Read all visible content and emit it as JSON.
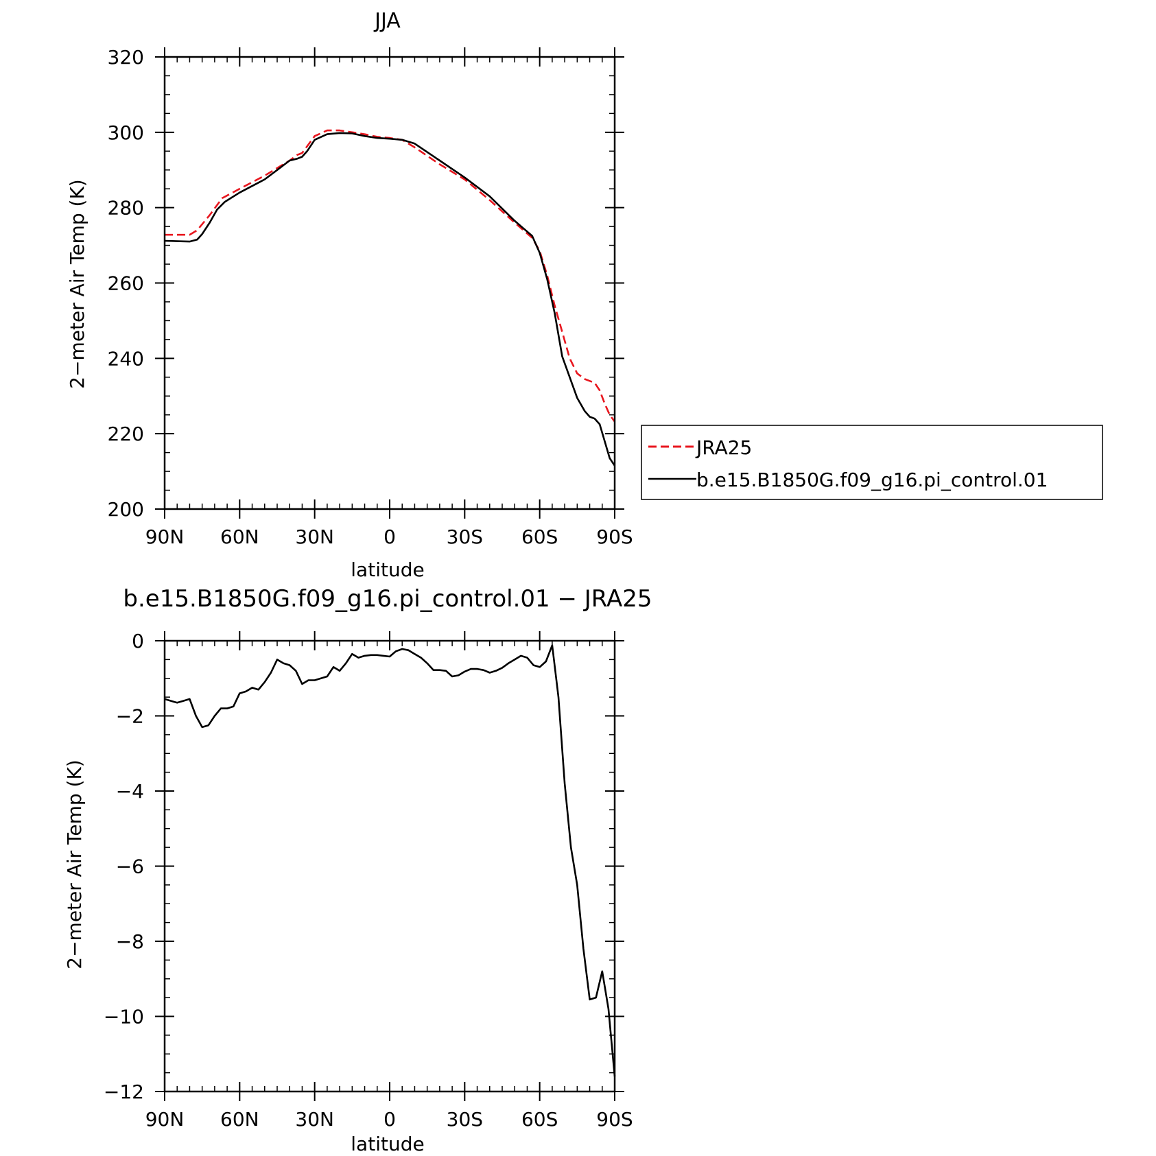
{
  "chart_data": [
    {
      "type": "line",
      "title": "JJA",
      "xlabel": "latitude",
      "ylabel": "2−meter Air Temp (K)",
      "xlim": [
        90,
        -90
      ],
      "ylim": [
        200,
        320
      ],
      "x_ticks": [
        {
          "value": 90,
          "label": "90N"
        },
        {
          "value": 60,
          "label": "60N"
        },
        {
          "value": 30,
          "label": "30N"
        },
        {
          "value": 0,
          "label": "0"
        },
        {
          "value": -30,
          "label": "30S"
        },
        {
          "value": -60,
          "label": "60S"
        },
        {
          "value": -90,
          "label": "90S"
        }
      ],
      "y_ticks": [
        {
          "value": 200,
          "label": "200"
        },
        {
          "value": 220,
          "label": "220"
        },
        {
          "value": 240,
          "label": "240"
        },
        {
          "value": 260,
          "label": "260"
        },
        {
          "value": 280,
          "label": "280"
        },
        {
          "value": 300,
          "label": "300"
        },
        {
          "value": 320,
          "label": "320"
        }
      ],
      "legend_position": "right",
      "series": [
        {
          "name": "JRA25",
          "color": "#e8171f",
          "dash": "dashed",
          "x": [
            90,
            80,
            77,
            72,
            67,
            60,
            50,
            45,
            40,
            37,
            35,
            30,
            25,
            20,
            15,
            10,
            5,
            0,
            -5,
            -10,
            -20,
            -30,
            -40,
            -50,
            -57,
            -60,
            -63,
            -66,
            -69,
            -72,
            -75,
            -78,
            -80,
            -82,
            -84,
            -86,
            -88,
            -90
          ],
          "y": [
            272.8,
            272.8,
            274,
            278,
            282.5,
            285,
            288.5,
            290.5,
            292.5,
            294,
            294.5,
            299,
            300.5,
            300.5,
            300,
            299.5,
            298.8,
            298.5,
            298,
            296,
            291.5,
            287.5,
            282,
            276,
            272,
            268.5,
            262,
            254,
            247,
            240,
            236,
            234.5,
            234,
            233.5,
            231.5,
            228,
            225,
            223.2
          ]
        },
        {
          "name": "b.e15.B1850G.f09_g16.pi_control.01",
          "color": "#000000",
          "dash": "solid",
          "x": [
            90,
            80,
            77,
            75,
            72,
            69,
            66,
            60,
            50,
            45,
            40,
            37,
            35,
            33,
            30,
            25,
            20,
            15,
            10,
            5,
            0,
            -5,
            -10,
            -20,
            -30,
            -40,
            -50,
            -57,
            -60,
            -63,
            -66,
            -69,
            -72,
            -75,
            -78,
            -80,
            -82,
            -84,
            -86,
            -88,
            -90
          ],
          "y": [
            271.2,
            271,
            271.5,
            273,
            276,
            279.5,
            281.5,
            284,
            287.5,
            290,
            292.5,
            293,
            293.5,
            295,
            298,
            299.5,
            299.8,
            299.7,
            299,
            298.5,
            298.3,
            298,
            297,
            292.5,
            288,
            283,
            276.5,
            272.5,
            268,
            261,
            252,
            240.5,
            235,
            229.5,
            226,
            224.5,
            224,
            222.5,
            218,
            213.5,
            211.5
          ]
        }
      ]
    },
    {
      "type": "line",
      "title": "b.e15.B1850G.f09_g16.pi_control.01 − JRA25",
      "xlabel": "latitude",
      "ylabel": "2−meter Air Temp (K)",
      "xlim": [
        90,
        -90
      ],
      "ylim": [
        -12,
        0
      ],
      "x_ticks": [
        {
          "value": 90,
          "label": "90N"
        },
        {
          "value": 60,
          "label": "60N"
        },
        {
          "value": 30,
          "label": "30N"
        },
        {
          "value": 0,
          "label": "0"
        },
        {
          "value": -30,
          "label": "30S"
        },
        {
          "value": -60,
          "label": "60S"
        },
        {
          "value": -90,
          "label": "90S"
        }
      ],
      "y_ticks": [
        {
          "value": 0,
          "label": "0"
        },
        {
          "value": -2,
          "label": "−2"
        },
        {
          "value": -4,
          "label": "−4"
        },
        {
          "value": -6,
          "label": "−6"
        },
        {
          "value": -8,
          "label": "−8"
        },
        {
          "value": -10,
          "label": "−10"
        },
        {
          "value": -12,
          "label": "−12"
        }
      ],
      "series": [
        {
          "color": "#000000",
          "dash": "solid",
          "x": [
            90,
            87.5,
            85,
            82.5,
            80,
            77.5,
            75,
            72.5,
            70,
            67.5,
            65,
            62.5,
            60,
            57.5,
            55,
            52.5,
            50,
            47.5,
            45,
            42.5,
            40,
            37.5,
            35,
            32.5,
            30,
            27.5,
            25,
            22.5,
            20,
            17.5,
            15,
            12.5,
            10,
            7.5,
            5,
            2.5,
            0,
            -2.5,
            -5,
            -7.5,
            -10,
            -12.5,
            -15,
            -17.5,
            -20,
            -22.5,
            -25,
            -27.5,
            -30,
            -32.5,
            -35,
            -37.5,
            -40,
            -42.5,
            -45,
            -47.5,
            -50,
            -52.5,
            -55,
            -57.5,
            -60,
            -62.5,
            -65,
            -67.5,
            -70,
            -72.5,
            -75,
            -77.5,
            -80,
            -82.5,
            -85,
            -87.5,
            -90
          ],
          "y": [
            -1.55,
            -1.6,
            -1.65,
            -1.6,
            -1.55,
            -2.0,
            -2.3,
            -2.25,
            -2.0,
            -1.8,
            -1.8,
            -1.75,
            -1.4,
            -1.35,
            -1.25,
            -1.3,
            -1.1,
            -0.85,
            -0.5,
            -0.6,
            -0.65,
            -0.8,
            -1.15,
            -1.05,
            -1.05,
            -1.0,
            -0.95,
            -0.7,
            -0.8,
            -0.6,
            -0.35,
            -0.45,
            -0.4,
            -0.38,
            -0.38,
            -0.4,
            -0.42,
            -0.28,
            -0.22,
            -0.25,
            -0.35,
            -0.45,
            -0.6,
            -0.78,
            -0.78,
            -0.8,
            -0.95,
            -0.92,
            -0.82,
            -0.75,
            -0.75,
            -0.78,
            -0.85,
            -0.8,
            -0.72,
            -0.6,
            -0.5,
            -0.4,
            -0.45,
            -0.65,
            -0.7,
            -0.55,
            -0.12,
            -1.5,
            -3.8,
            -5.5,
            -6.5,
            -8.2,
            -9.55,
            -9.5,
            -8.8,
            -9.8,
            -11.6
          ]
        }
      ]
    }
  ]
}
